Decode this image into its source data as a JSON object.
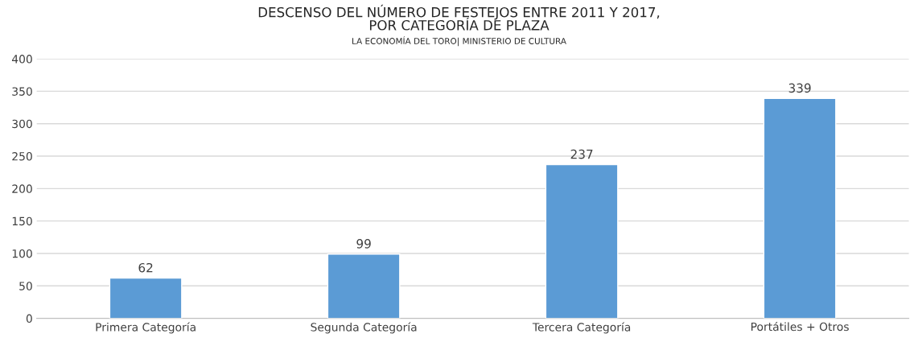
{
  "chart_data": {
    "type": "bar",
    "title": "DESCENSO DEL NÚMERO DE FESTEJOS ENTRE 2011 Y 2017,\nPOR CATEGORÍA DE PLAZA",
    "subtitle": "LA ECONOMÍA DEL TORO| MINISTERIO DE CULTURA",
    "categories": [
      "Primera Categoría",
      "Segunda Categoría",
      "Tercera Categoría",
      "Portátiles + Otros"
    ],
    "values": [
      62,
      99,
      237,
      339
    ],
    "color": "#5b9bd5",
    "ylim": [
      0,
      400
    ],
    "yticks": [
      0,
      50,
      100,
      150,
      200,
      250,
      300,
      350,
      400
    ],
    "grid": "y",
    "data_labels": true
  }
}
